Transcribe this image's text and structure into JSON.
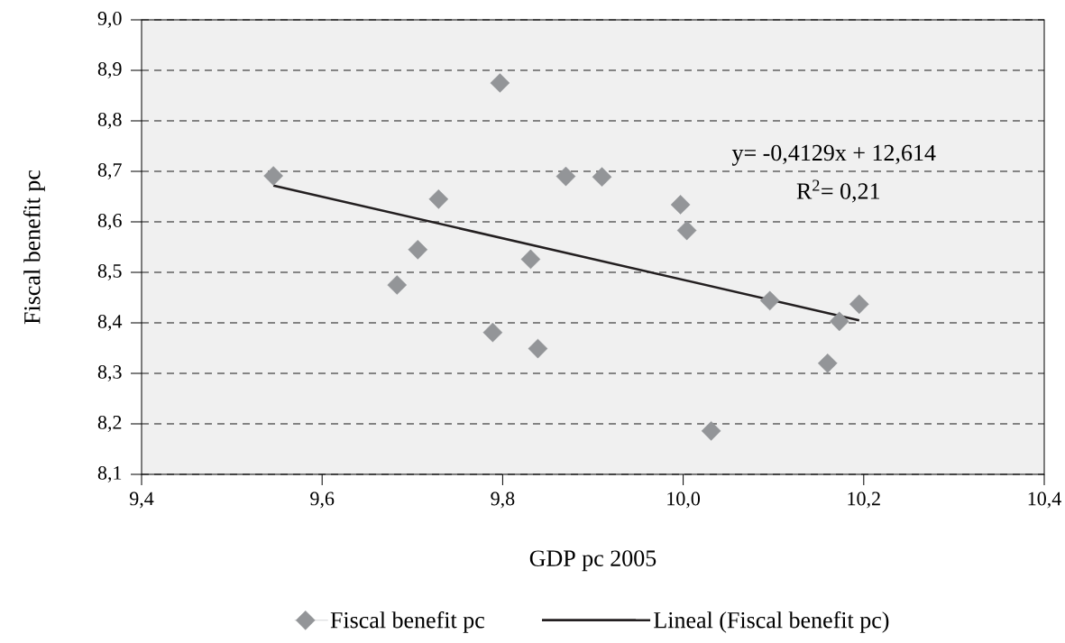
{
  "chart_data": {
    "type": "scatter",
    "xlabel": "GDP pc 2005",
    "ylabel": "Fiscal benefit pc",
    "annotations": [
      "y= -0,4129x + 12,614",
      "R$^{2}$= 0,21"
    ],
    "xlim": [
      9.4,
      10.4
    ],
    "ylim": [
      8.1,
      9.0
    ],
    "xticks": [
      {
        "value": 9.4,
        "label": "9,4"
      },
      {
        "value": 9.6,
        "label": "9,6"
      },
      {
        "value": 9.8,
        "label": "9,8"
      },
      {
        "value": 10.0,
        "label": "10,0"
      },
      {
        "value": 10.2,
        "label": "10,2"
      },
      {
        "value": 10.4,
        "label": "10,4"
      }
    ],
    "yticks": [
      {
        "value": 8.1,
        "label": "8,1"
      },
      {
        "value": 8.2,
        "label": "8,2"
      },
      {
        "value": 8.3,
        "label": "8,3"
      },
      {
        "value": 8.4,
        "label": "8,4"
      },
      {
        "value": 8.5,
        "label": "8,5"
      },
      {
        "value": 8.6,
        "label": "8,6"
      },
      {
        "value": 8.7,
        "label": "8,7"
      },
      {
        "value": 8.8,
        "label": "8,8"
      },
      {
        "value": 8.9,
        "label": "8,9"
      },
      {
        "value": 9.0,
        "label": "9,0"
      }
    ],
    "grid": "y",
    "legend": "bottom",
    "series": [
      {
        "name": "Fiscal benefit pc",
        "color": "#939598",
        "marker": "diamond",
        "x": [
          9.546,
          9.797,
          9.683,
          9.706,
          9.729,
          9.789,
          9.831,
          9.839,
          9.87,
          9.91,
          9.997,
          10.004,
          10.031,
          10.096,
          10.173,
          10.16,
          10.195
        ],
        "values": [
          8.691,
          8.875,
          8.475,
          8.545,
          8.645,
          8.381,
          8.526,
          8.349,
          8.69,
          8.689,
          8.634,
          8.583,
          8.186,
          8.444,
          8.403,
          8.32,
          8.437
        ]
      },
      {
        "name": "Lineal (Fiscal benefit pc)",
        "type": "line",
        "color": "#231f20",
        "marker": "none",
        "line_style": "solid",
        "x": [
          9.546,
          10.195
        ],
        "values": [
          8.672,
          8.405
        ]
      }
    ]
  }
}
